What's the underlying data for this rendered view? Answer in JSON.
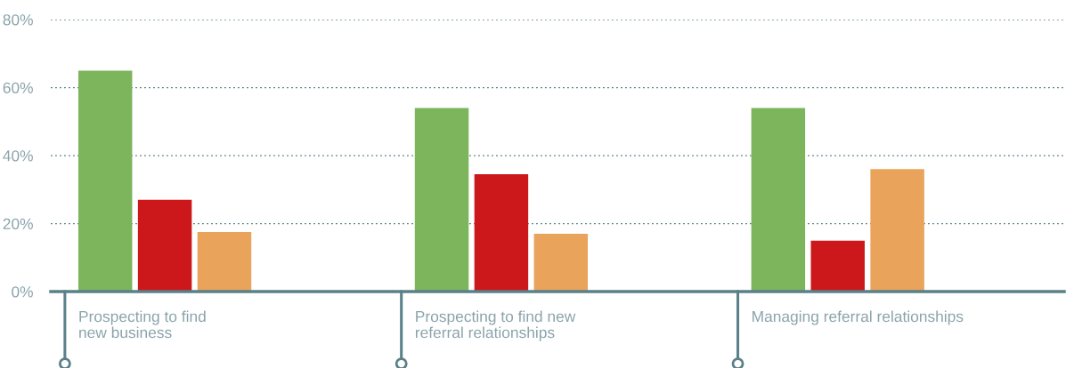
{
  "chart_data": {
    "type": "bar",
    "categories": [
      "Prospecting to find\nnew business",
      "Prospecting to find new\nreferral relationships",
      "Managing referral relationships"
    ],
    "series": [
      {
        "color": "#7cb55b",
        "values": [
          65,
          54,
          54
        ]
      },
      {
        "color": "#cc171b",
        "values": [
          27,
          34.5,
          15
        ]
      },
      {
        "color": "#eaa35a",
        "values": [
          17.5,
          17,
          36
        ]
      }
    ],
    "ylim": [
      0,
      80
    ],
    "yticks": [
      {
        "value": 0,
        "label": "0%"
      },
      {
        "value": 20,
        "label": "20%"
      },
      {
        "value": 40,
        "label": "40%"
      },
      {
        "value": 60,
        "label": "60%"
      },
      {
        "value": 80,
        "label": "80%"
      }
    ],
    "grid": "y",
    "legend": false
  }
}
